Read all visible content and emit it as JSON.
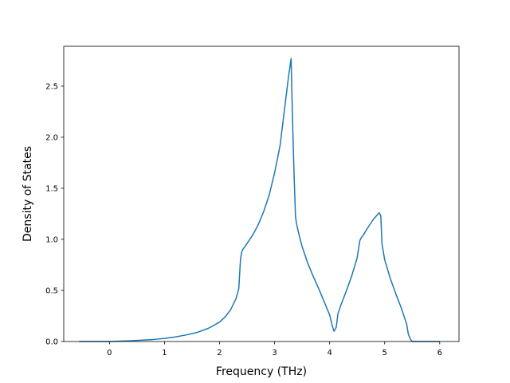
{
  "chart_data": {
    "type": "line",
    "title": "",
    "xlabel": "Frequency (THz)",
    "ylabel": "Density of States",
    "xlim": [
      -0.83,
      6.35
    ],
    "ylim": [
      0,
      2.89
    ],
    "xticks": [
      0,
      1,
      2,
      3,
      4,
      5,
      6
    ],
    "xtick_labels": [
      "0",
      "1",
      "2",
      "3",
      "4",
      "5",
      "6"
    ],
    "yticks": [
      0.0,
      0.5,
      1.0,
      1.5,
      2.0,
      2.5
    ],
    "ytick_labels": [
      "0.0",
      "0.5",
      "1.0",
      "1.5",
      "2.0",
      "2.5"
    ],
    "grid": false,
    "line_color": "#1f77b4",
    "series": [
      {
        "x": [
          -0.55,
          0.0,
          0.4,
          0.8,
          1.0,
          1.2,
          1.4,
          1.6,
          1.8,
          2.0,
          2.1,
          2.2,
          2.3,
          2.35,
          2.38,
          2.4,
          2.42,
          2.45,
          2.5,
          2.6,
          2.7,
          2.8,
          2.9,
          3.0,
          3.1,
          3.2,
          3.25,
          3.3,
          3.32,
          3.35,
          3.38,
          3.4,
          3.45,
          3.5,
          3.6,
          3.7,
          3.8,
          3.9,
          4.0,
          4.05,
          4.08,
          4.12,
          4.15,
          4.2,
          4.3,
          4.4,
          4.5,
          4.55,
          4.58,
          4.62,
          4.7,
          4.8,
          4.85,
          4.9,
          4.93,
          4.95,
          5.0,
          5.1,
          5.2,
          5.3,
          5.4,
          5.43,
          5.47,
          5.5,
          5.6,
          6.0
        ],
        "y": [
          0.0,
          0.0,
          0.008,
          0.02,
          0.03,
          0.045,
          0.065,
          0.09,
          0.13,
          0.19,
          0.24,
          0.31,
          0.42,
          0.52,
          0.8,
          0.87,
          0.9,
          0.92,
          0.96,
          1.04,
          1.14,
          1.27,
          1.43,
          1.65,
          1.92,
          2.36,
          2.58,
          2.77,
          2.3,
          1.7,
          1.22,
          1.15,
          1.03,
          0.93,
          0.77,
          0.64,
          0.52,
          0.39,
          0.26,
          0.15,
          0.1,
          0.14,
          0.27,
          0.35,
          0.49,
          0.64,
          0.82,
          0.99,
          1.02,
          1.05,
          1.12,
          1.2,
          1.23,
          1.26,
          1.23,
          0.96,
          0.8,
          0.62,
          0.47,
          0.33,
          0.17,
          0.07,
          0.02,
          0.0,
          0.0,
          0.0
        ]
      }
    ]
  }
}
